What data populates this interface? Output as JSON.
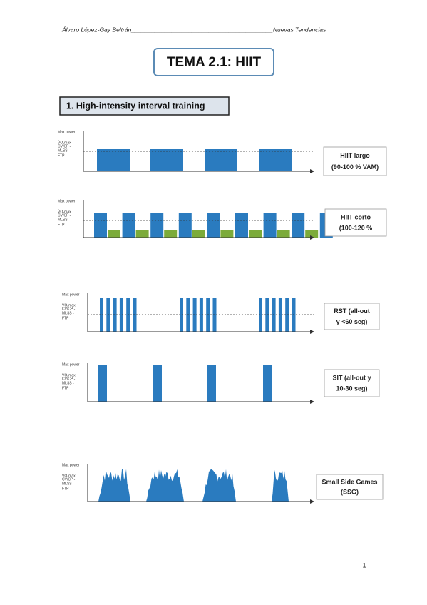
{
  "header": {
    "text": "Álvaro López-Gay Beltrán__________________________________________Nuevas Tendencias"
  },
  "title": "TEMA 2.1: HIIT",
  "section": "1. High-intensity interval training",
  "diagrams": [
    {
      "axis_labels": [
        "Max power",
        "V̇O₂max",
        "CV/CP -",
        "MLSS -",
        "FTP"
      ],
      "caption": [
        "HIIT largo",
        "(90-100 % VAM)"
      ]
    },
    {
      "axis_labels": [
        "Max power",
        "V̇O₂max",
        "CV/CP -",
        "MLSS -",
        "FTP"
      ],
      "caption": [
        "HIIT corto",
        "(100-120 %"
      ]
    },
    {
      "axis_labels": [
        "Max power",
        "V̇O₂max",
        "CV/CP -",
        "MLSS -",
        "FTP"
      ],
      "caption": [
        "RST (all-out",
        "y <60 seg)"
      ]
    },
    {
      "axis_labels": [
        "Max power",
        "V̇O₂max",
        "CV/CP -",
        "MLSS -",
        "FTP"
      ],
      "caption": [
        "SIT (all-out y",
        "10-30 seg)"
      ]
    },
    {
      "axis_labels": [
        "Max power",
        "V̇O₂max",
        "CV/CP -",
        "MLSS -",
        "FTP"
      ],
      "caption": [
        "Small Side Games",
        "(SSG)"
      ]
    }
  ],
  "page_number": "1"
}
